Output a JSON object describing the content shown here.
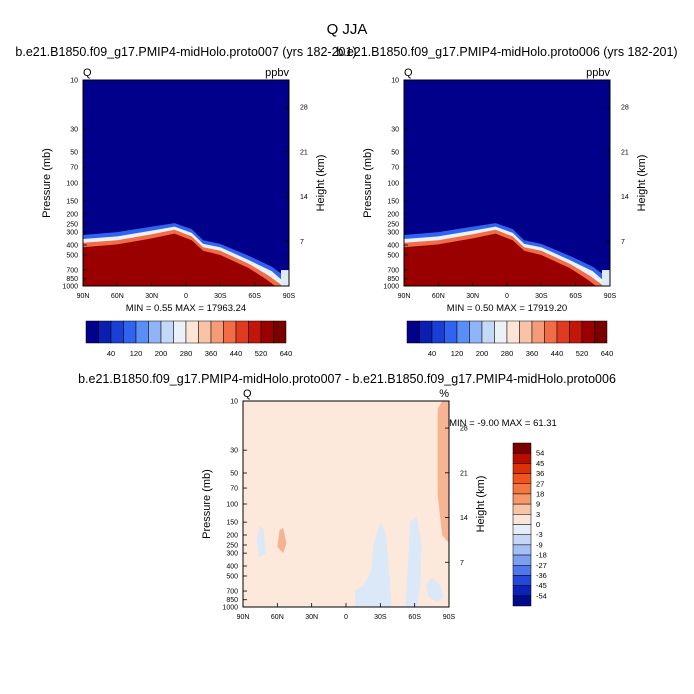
{
  "page": {
    "title": "Q JJA"
  },
  "chart_data": [
    {
      "type": "heatmap",
      "title": "b.e21.B1850.f09_g17.PMIP4-midHolo.proto007 (yrs 182-201)",
      "variable_label": "Q",
      "units_label": "ppbv",
      "ylabel": "Pressure (mb)",
      "ylabel_right": "Height (km)",
      "x_ticks": [
        "90N",
        "60N",
        "30N",
        "0",
        "30S",
        "60S",
        "90S"
      ],
      "x_values": [
        90,
        60,
        30,
        0,
        -30,
        -60,
        -90
      ],
      "y_ticks": [
        "10",
        "30",
        "50",
        "70",
        "100",
        "150",
        "200",
        "250",
        "300",
        "400",
        "500",
        "700",
        "850",
        "1000"
      ],
      "y_values": [
        10,
        30,
        50,
        70,
        100,
        150,
        200,
        250,
        300,
        400,
        500,
        700,
        850,
        1000
      ],
      "y_scale": "log",
      "ylim": [
        10,
        1000
      ],
      "height_ticks": [
        "28",
        "21",
        "14",
        "7"
      ],
      "height_values": [
        28,
        21,
        14,
        7
      ],
      "stats": "MIN =   0.55   MAX = 17963.24",
      "colorbar_labels": [
        "40",
        "120",
        "200",
        "280",
        "360",
        "440",
        "520",
        "640"
      ]
    },
    {
      "type": "heatmap",
      "title": "b.e21.B1850.f09_g17.PMIP4-midHolo.proto006 (yrs 182-201)",
      "variable_label": "Q",
      "units_label": "ppbv",
      "ylabel": "Pressure (mb)",
      "ylabel_right": "Height (km)",
      "x_ticks": [
        "90N",
        "60N",
        "30N",
        "0",
        "30S",
        "60S",
        "90S"
      ],
      "x_values": [
        90,
        60,
        30,
        0,
        -30,
        -60,
        -90
      ],
      "y_ticks": [
        "10",
        "30",
        "50",
        "70",
        "100",
        "150",
        "200",
        "250",
        "300",
        "400",
        "500",
        "700",
        "850",
        "1000"
      ],
      "y_values": [
        10,
        30,
        50,
        70,
        100,
        150,
        200,
        250,
        300,
        400,
        500,
        700,
        850,
        1000
      ],
      "y_scale": "log",
      "ylim": [
        10,
        1000
      ],
      "height_ticks": [
        "28",
        "21",
        "14",
        "7"
      ],
      "height_values": [
        28,
        21,
        14,
        7
      ],
      "stats": "MIN =   0.50   MAX = 17919.20",
      "colorbar_labels": [
        "40",
        "120",
        "200",
        "280",
        "360",
        "440",
        "520",
        "640"
      ]
    },
    {
      "type": "heatmap",
      "title": "b.e21.B1850.f09_g17.PMIP4-midHolo.proto007 - b.e21.B1850.f09_g17.PMIP4-midHolo.proto006",
      "variable_label": "Q",
      "units_label": "%",
      "ylabel": "Pressure (mb)",
      "ylabel_right": "Height (km)",
      "x_ticks": [
        "90N",
        "60N",
        "30N",
        "0",
        "30S",
        "60S",
        "90S"
      ],
      "x_values": [
        90,
        60,
        30,
        0,
        -30,
        -60,
        -90
      ],
      "y_ticks": [
        "10",
        "30",
        "50",
        "70",
        "100",
        "150",
        "200",
        "250",
        "300",
        "400",
        "500",
        "700",
        "850",
        "1000"
      ],
      "y_values": [
        10,
        30,
        50,
        70,
        100,
        150,
        200,
        250,
        300,
        400,
        500,
        700,
        850,
        1000
      ],
      "y_scale": "log",
      "ylim": [
        10,
        1000
      ],
      "height_ticks": [
        "28",
        "21",
        "14",
        "7"
      ],
      "height_values": [
        28,
        21,
        14,
        7
      ],
      "stats": "MIN =  -9.00   MAX =  61.31",
      "colorbar_labels": [
        "54",
        "45",
        "36",
        "27",
        "18",
        "9",
        "3",
        "0",
        "-3",
        "-9",
        "-18",
        "-27",
        "-36",
        "-45",
        "-54"
      ]
    }
  ],
  "colors": {
    "abs_bar": [
      "#00008b",
      "#0a1fb0",
      "#1a3fd6",
      "#2f63f0",
      "#5a8ef7",
      "#8fb4f7",
      "#c4d8f7",
      "#ecf1f7",
      "#fde4d6",
      "#f8c4a6",
      "#f59b77",
      "#f06d48",
      "#e03a20",
      "#c41608",
      "#9a0000",
      "#7a0000"
    ],
    "diff_bar": [
      "#7a0000",
      "#b50d00",
      "#de2f06",
      "#f0561c",
      "#f4773f",
      "#f5986a",
      "#f8c4a6",
      "#fde4d6",
      "#e6eef9",
      "#c6d7f6",
      "#a3bff5",
      "#7c9ff0",
      "#4f76ea",
      "#2449d9",
      "#0a22b5",
      "#000a8a"
    ]
  }
}
